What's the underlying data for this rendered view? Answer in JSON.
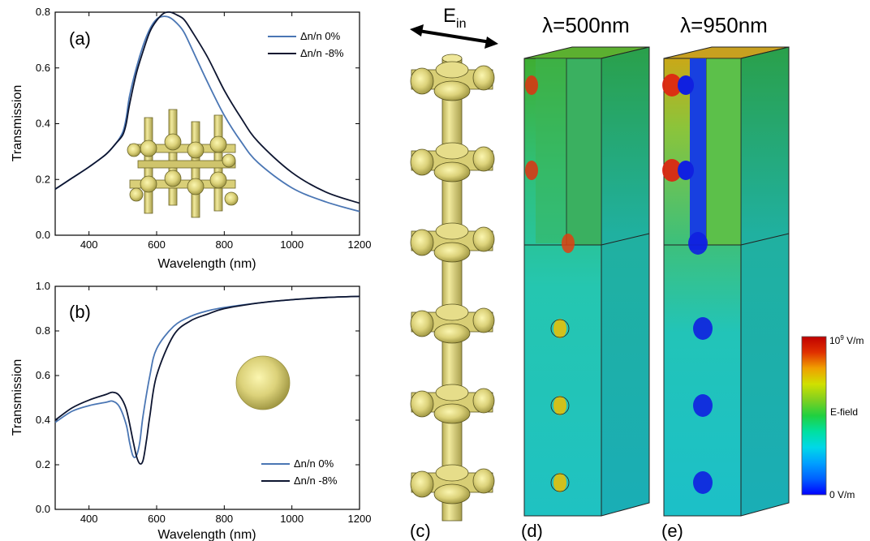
{
  "panel_labels": {
    "a": "(a)",
    "b": "(b)",
    "c": "(c)",
    "d": "(d)",
    "e": "(e)"
  },
  "field_view": {
    "ein_label": "E",
    "ein_sub": "in",
    "d_title": "λ=500nm",
    "e_title": "λ=950nm"
  },
  "colorbar": {
    "max_label_base": "10",
    "max_label_exp": "9",
    "max_label_unit": " V/m",
    "mid_label": "E-field",
    "min_label": "0 V/m",
    "colors": [
      "#0000ff",
      "#0060ff",
      "#00a0ff",
      "#00d8e8",
      "#00e0a0",
      "#20d040",
      "#80d020",
      "#d0e000",
      "#f0a000",
      "#e03000",
      "#c00000"
    ]
  },
  "chart_data": [
    {
      "type": "line",
      "panel": "(a)",
      "xlabel": "Wavelength (nm)",
      "ylabel": "Transmission",
      "xlim": [
        300,
        1200
      ],
      "ylim": [
        0,
        0.8
      ],
      "xticks": [
        400,
        600,
        800,
        1000,
        1200
      ],
      "yticks": [
        0.0,
        0.2,
        0.4,
        0.6,
        0.8
      ],
      "ytick_labels": [
        "0.0",
        "0.2",
        "0.4",
        "0.6",
        "0.8"
      ],
      "legend_position": "top-right",
      "series": [
        {
          "name": "Δn/n 0%",
          "color": "#4a76b4",
          "x": [
            300,
            350,
            400,
            450,
            480,
            500,
            510,
            520,
            540,
            560,
            580,
            600,
            620,
            640,
            660,
            680,
            700,
            750,
            800,
            850,
            900,
            1000,
            1100,
            1200
          ],
          "y": [
            0.165,
            0.205,
            0.245,
            0.29,
            0.33,
            0.37,
            0.42,
            0.5,
            0.6,
            0.68,
            0.74,
            0.775,
            0.785,
            0.78,
            0.76,
            0.73,
            0.68,
            0.55,
            0.43,
            0.335,
            0.26,
            0.17,
            0.12,
            0.085
          ]
        },
        {
          "name": "Δn/n -8%",
          "color": "#0d1530",
          "x": [
            300,
            350,
            400,
            450,
            480,
            500,
            510,
            520,
            540,
            560,
            580,
            600,
            620,
            640,
            660,
            680,
            700,
            750,
            800,
            850,
            900,
            1000,
            1100,
            1200
          ],
          "y": [
            0.165,
            0.205,
            0.245,
            0.29,
            0.33,
            0.36,
            0.4,
            0.47,
            0.58,
            0.66,
            0.73,
            0.77,
            0.795,
            0.8,
            0.79,
            0.775,
            0.74,
            0.64,
            0.52,
            0.42,
            0.335,
            0.225,
            0.155,
            0.115
          ]
        }
      ]
    },
    {
      "type": "line",
      "panel": "(b)",
      "xlabel": "Wavelength (nm)",
      "ylabel": "Transmission",
      "xlim": [
        300,
        1200
      ],
      "ylim": [
        0,
        1.0
      ],
      "xticks": [
        400,
        600,
        800,
        1000,
        1200
      ],
      "yticks": [
        0.0,
        0.2,
        0.4,
        0.6,
        0.8,
        1.0
      ],
      "ytick_labels": [
        "0.0",
        "0.2",
        "0.4",
        "0.6",
        "0.8",
        "1.0"
      ],
      "legend_position": "bottom-right",
      "series": [
        {
          "name": "Δn/n 0%",
          "color": "#4a76b4",
          "x": [
            300,
            350,
            400,
            450,
            470,
            490,
            510,
            520,
            530,
            540,
            550,
            560,
            580,
            600,
            650,
            700,
            750,
            800,
            900,
            1000,
            1100,
            1200
          ],
          "y": [
            0.39,
            0.44,
            0.465,
            0.48,
            0.485,
            0.46,
            0.38,
            0.3,
            0.24,
            0.24,
            0.3,
            0.42,
            0.6,
            0.72,
            0.82,
            0.865,
            0.89,
            0.905,
            0.925,
            0.94,
            0.95,
            0.955
          ]
        },
        {
          "name": "Δn/n -8%",
          "color": "#0d1530",
          "x": [
            300,
            350,
            400,
            450,
            470,
            490,
            510,
            530,
            540,
            550,
            560,
            570,
            580,
            600,
            650,
            700,
            750,
            800,
            900,
            1000,
            1100,
            1200
          ],
          "y": [
            0.4,
            0.455,
            0.49,
            0.515,
            0.525,
            0.51,
            0.45,
            0.31,
            0.24,
            0.205,
            0.22,
            0.31,
            0.42,
            0.6,
            0.78,
            0.845,
            0.875,
            0.9,
            0.925,
            0.94,
            0.95,
            0.955
          ]
        }
      ]
    }
  ]
}
